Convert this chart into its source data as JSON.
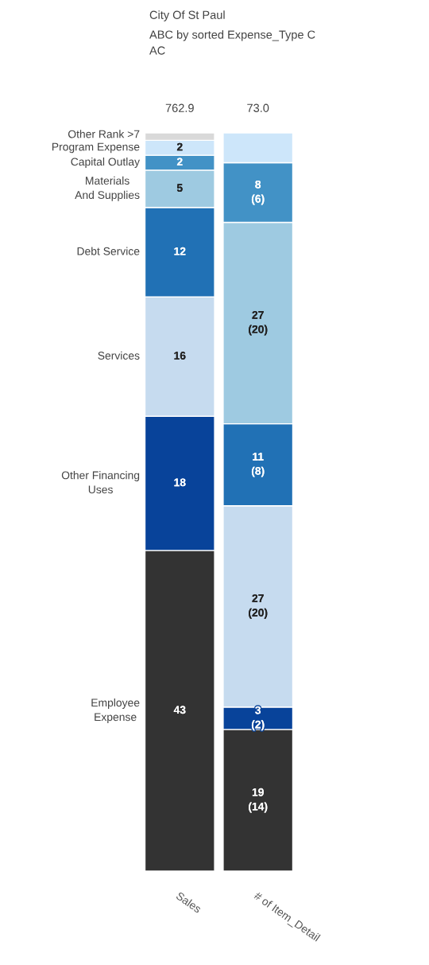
{
  "chart_data": {
    "type": "bar",
    "stacked": true,
    "title": "City Of St Paul",
    "subtitle": "ABC by sorted Expense_Type C\nAC",
    "categories": [
      "Sales",
      "# of Item_Detail"
    ],
    "annotations": [
      "762.9",
      "73.0"
    ],
    "legend": false,
    "series": [
      {
        "name": "Employee\nExpense",
        "color": "#333333",
        "values": [
          43,
          19
        ],
        "value_labels": [
          "43",
          "19\n(14)"
        ]
      },
      {
        "name": "Other Financing\nUses",
        "color": "#08439a",
        "values": [
          18,
          3
        ],
        "value_labels": [
          "18",
          "3\n(2)"
        ]
      },
      {
        "name": "Services",
        "color": "#c6dbef",
        "values": [
          16,
          27
        ],
        "value_labels": [
          "16",
          "27\n(20)"
        ]
      },
      {
        "name": "Debt Service",
        "color": "#2171b5",
        "values": [
          12,
          11
        ],
        "value_labels": [
          "12",
          "11\n(8)"
        ]
      },
      {
        "name": "Materials\nAnd Supplies",
        "color": "#9ecae1",
        "values": [
          5,
          27
        ],
        "value_labels": [
          "5",
          "27\n(20)"
        ]
      },
      {
        "name": "Capital Outlay",
        "color": "#4292c6",
        "values": [
          2,
          8
        ],
        "value_labels": [
          "2",
          "8\n(6)"
        ]
      },
      {
        "name": "Program Expense",
        "color": "#cde6fa",
        "values": [
          2,
          4
        ],
        "value_labels": [
          "2",
          null
        ]
      },
      {
        "name": "Other Rank >7",
        "color": "#d9d9d9",
        "values": [
          1,
          null
        ],
        "value_labels": [
          null,
          null
        ]
      }
    ]
  }
}
